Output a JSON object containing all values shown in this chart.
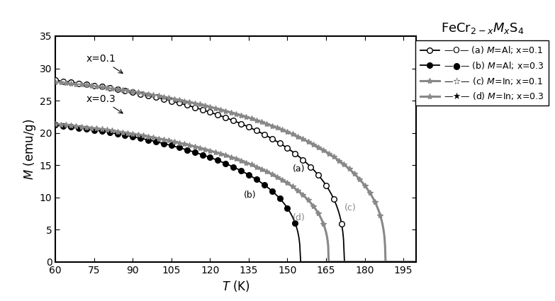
{
  "xlabel": "$T$ (K)",
  "ylabel": "$M$ (emu/g)",
  "xlim": [
    60,
    200
  ],
  "ylim": [
    0,
    35
  ],
  "xticks": [
    60,
    75,
    90,
    105,
    120,
    135,
    150,
    165,
    180,
    195
  ],
  "yticks": [
    0,
    5,
    10,
    15,
    20,
    25,
    30,
    35
  ],
  "background": "#ffffff",
  "curves": {
    "a": {
      "label": "(a) $M$=Al; x=0.1",
      "color": "#000000",
      "lw": 1.2,
      "marker": "o",
      "mfc": "white",
      "mec": "black",
      "ms": 5.5,
      "Tc": 172,
      "M0": 29.5,
      "beta": 0.38,
      "T0": 50,
      "step": 3
    },
    "b": {
      "label": "(b) $M$=Al; x=0.3",
      "color": "#000000",
      "lw": 1.2,
      "marker": "o",
      "mfc": "black",
      "mec": "black",
      "ms": 5.5,
      "Tc": 155,
      "M0": 22.5,
      "beta": 0.38,
      "T0": 40,
      "step": 3
    },
    "c": {
      "label": "(c) $M$=In; x=0.1",
      "color": "#888888",
      "lw": 2.0,
      "marker": "*",
      "mfc": "#888888",
      "mec": "#888888",
      "ms": 7,
      "Tc": 187,
      "M0": 29.0,
      "beta": 0.38,
      "T0": 50,
      "step": 2
    },
    "d": {
      "label": "(d) $M$=In; x=0.3",
      "color": "#888888",
      "lw": 2.0,
      "marker": "*",
      "mfc": "#888888",
      "mec": "#888888",
      "ms": 7,
      "Tc": 165,
      "M0": 22.5,
      "beta": 0.38,
      "T0": 40,
      "step": 2
    }
  }
}
